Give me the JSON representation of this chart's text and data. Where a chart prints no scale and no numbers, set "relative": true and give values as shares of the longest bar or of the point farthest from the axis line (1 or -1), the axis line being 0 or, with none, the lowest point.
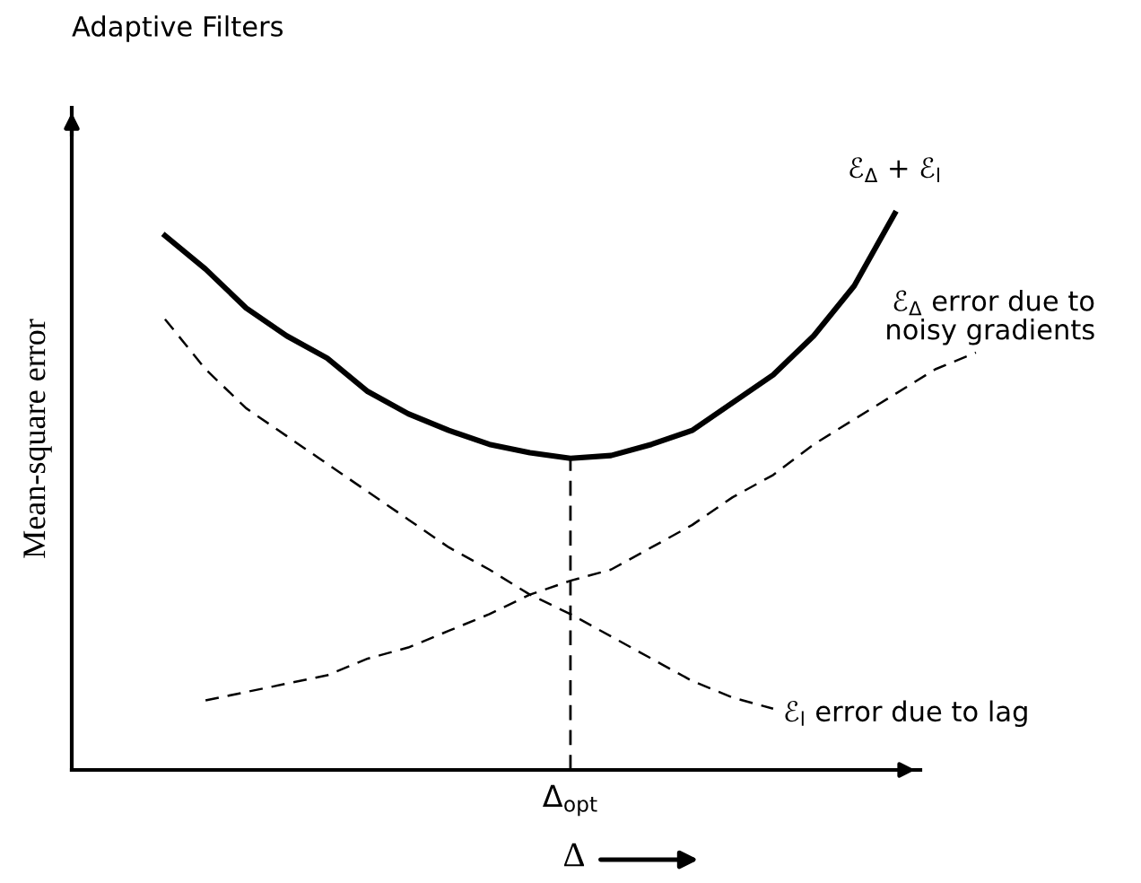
{
  "chart_data": {
    "type": "line",
    "title": "Adaptive Filters",
    "xlabel": "Δ",
    "ylabel": "Mean-square error",
    "relative": true,
    "categories": [
      null,
      null,
      null,
      null,
      null,
      null,
      null,
      null,
      null,
      null,
      null,
      null,
      null,
      null,
      null,
      null,
      null,
      null,
      null,
      null,
      null
    ],
    "series": [
      {
        "name": "ℰ$_{Δ}$ + ℰ$_{l}$",
        "color": "#000000",
        "line_style": "solid",
        "values": [
          0.96,
          0.9,
          0.83,
          0.78,
          0.74,
          0.68,
          0.64,
          0.61,
          0.585,
          0.57,
          0.56,
          0.565,
          0.585,
          0.61,
          0.66,
          0.71,
          0.78,
          0.87,
          1.0,
          null,
          null
        ]
      },
      {
        "name": "ℰ$_{Δ}$ error due to\nnoisy gradients",
        "color": "#000000",
        "line_style": "dashed",
        "values": [
          null,
          0.125,
          0.14,
          0.155,
          0.17,
          0.2,
          0.22,
          0.25,
          0.28,
          0.315,
          0.34,
          0.36,
          0.4,
          0.44,
          0.49,
          0.53,
          0.585,
          0.63,
          0.675,
          0.72,
          0.75
        ]
      },
      {
        "name": "ℰ$_{l}$ error due to lag",
        "color": "#000000",
        "line_style": "dashed",
        "values": [
          0.81,
          0.72,
          0.65,
          0.6,
          0.55,
          0.5,
          0.45,
          0.4,
          0.36,
          0.315,
          0.28,
          0.24,
          0.2,
          0.16,
          0.13,
          0.11,
          null,
          null,
          null,
          null,
          null
        ]
      }
    ],
    "annotations": [
      "Δ$_{opt}$"
    ]
  }
}
